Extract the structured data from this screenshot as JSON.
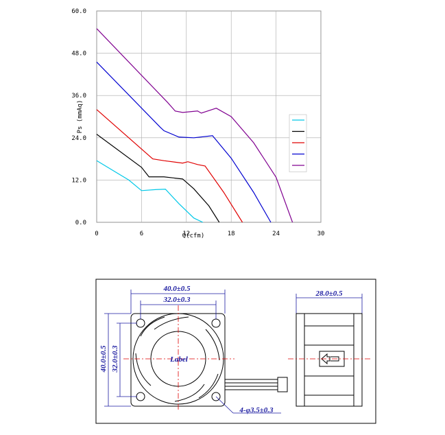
{
  "chart_data": {
    "type": "line",
    "y_label": "Ps (mmAq)",
    "x_label": "Q(cfm)",
    "xlim": [
      0,
      30
    ],
    "ylim": [
      0,
      60
    ],
    "xticks": [
      0,
      6,
      12,
      18,
      24,
      30
    ],
    "yticks": [
      {
        "value": 0,
        "label": "0.0"
      },
      {
        "value": 12,
        "label": "12.0"
      },
      {
        "value": 24,
        "label": "24.0"
      },
      {
        "value": 36,
        "label": "36.0"
      },
      {
        "value": 48,
        "label": "48.0"
      },
      {
        "value": 60,
        "label": "60.0"
      }
    ],
    "grid": true,
    "legend": "right",
    "series": [
      {
        "color": "#00c8e8",
        "x": [
          0,
          4.3,
          6,
          8,
          9.2,
          11,
          13,
          14.2
        ],
        "values": [
          17.5,
          12,
          9,
          9.3,
          9.4,
          5.3,
          1.2,
          0
        ]
      },
      {
        "color": "#000000",
        "x": [
          0,
          6,
          7,
          9,
          11.5,
          13,
          15,
          16.4
        ],
        "values": [
          25,
          15.6,
          12.9,
          12.9,
          12.3,
          9.5,
          4.7,
          0
        ]
      },
      {
        "color": "#e00000",
        "x": [
          0,
          7.5,
          9,
          11.5,
          12.2,
          13.5,
          14.5,
          17,
          19.5
        ],
        "values": [
          32,
          18,
          17.5,
          16.8,
          17.2,
          16.4,
          16,
          8.5,
          0
        ]
      },
      {
        "color": "#0000d0",
        "x": [
          0,
          8.5,
          9,
          11,
          13,
          15.5,
          18,
          21,
          23.3
        ],
        "values": [
          45.5,
          27,
          26,
          24.2,
          24,
          24.6,
          18.2,
          8.5,
          0
        ]
      },
      {
        "color": "#800090",
        "x": [
          0,
          9.5,
          10.5,
          11.5,
          13.5,
          14,
          16,
          18,
          21,
          24,
          26.2
        ],
        "values": [
          55,
          34,
          31.6,
          31.2,
          31.6,
          31,
          32.4,
          30,
          22.6,
          12.8,
          0
        ]
      }
    ]
  },
  "drawing": {
    "width_outer": "40.0±0.5",
    "width_inner": "32.0±0.3",
    "depth": "28.0±0.5",
    "height_outer": "40.0±0.5",
    "height_inner": "32.0±0.3",
    "label": "Label",
    "holes": "4-φ3.5±0.3"
  }
}
